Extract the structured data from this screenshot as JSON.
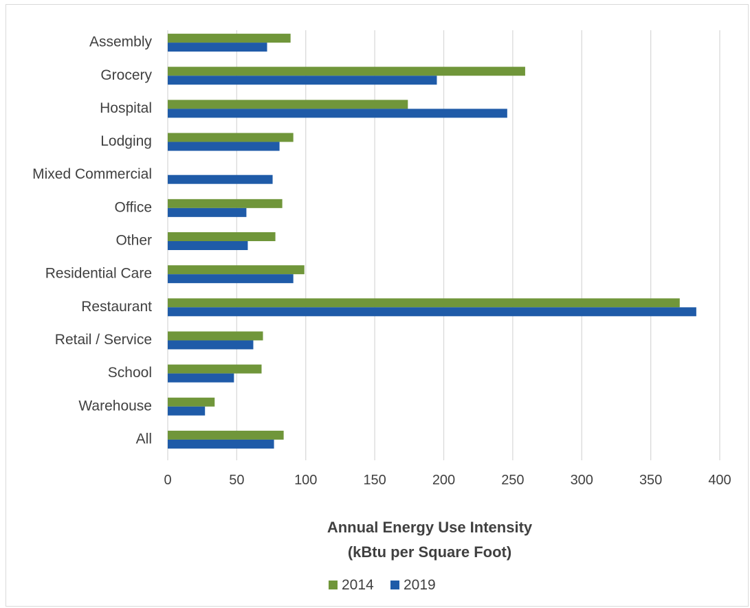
{
  "chart_data": {
    "type": "bar",
    "orientation": "horizontal",
    "categories": [
      "Assembly",
      "Grocery",
      "Hospital",
      "Lodging",
      "Mixed Commercial",
      "Office",
      "Other",
      "Residential Care",
      "Restaurant",
      "Retail / Service",
      "School",
      "Warehouse",
      "All"
    ],
    "series": [
      {
        "name": "2014",
        "color": "#70963a",
        "values": [
          89,
          259,
          174,
          91,
          null,
          83,
          78,
          99,
          371,
          69,
          68,
          34,
          84
        ]
      },
      {
        "name": "2019",
        "color": "#1f5ba8",
        "values": [
          72,
          195,
          246,
          81,
          76,
          57,
          58,
          91,
          383,
          62,
          48,
          27,
          77
        ]
      }
    ],
    "xlim": [
      0,
      400
    ],
    "xticks": [
      "0",
      "50",
      "100",
      "150",
      "200",
      "250",
      "300",
      "350",
      "400"
    ],
    "xtick_values": [
      0,
      50,
      100,
      150,
      200,
      250,
      300,
      350,
      400
    ],
    "xlabel_line1": "Annual Energy Use Intensity",
    "xlabel_line2": "(kBtu per Square Foot)",
    "grid": "vertical",
    "legend_position": "bottom"
  }
}
